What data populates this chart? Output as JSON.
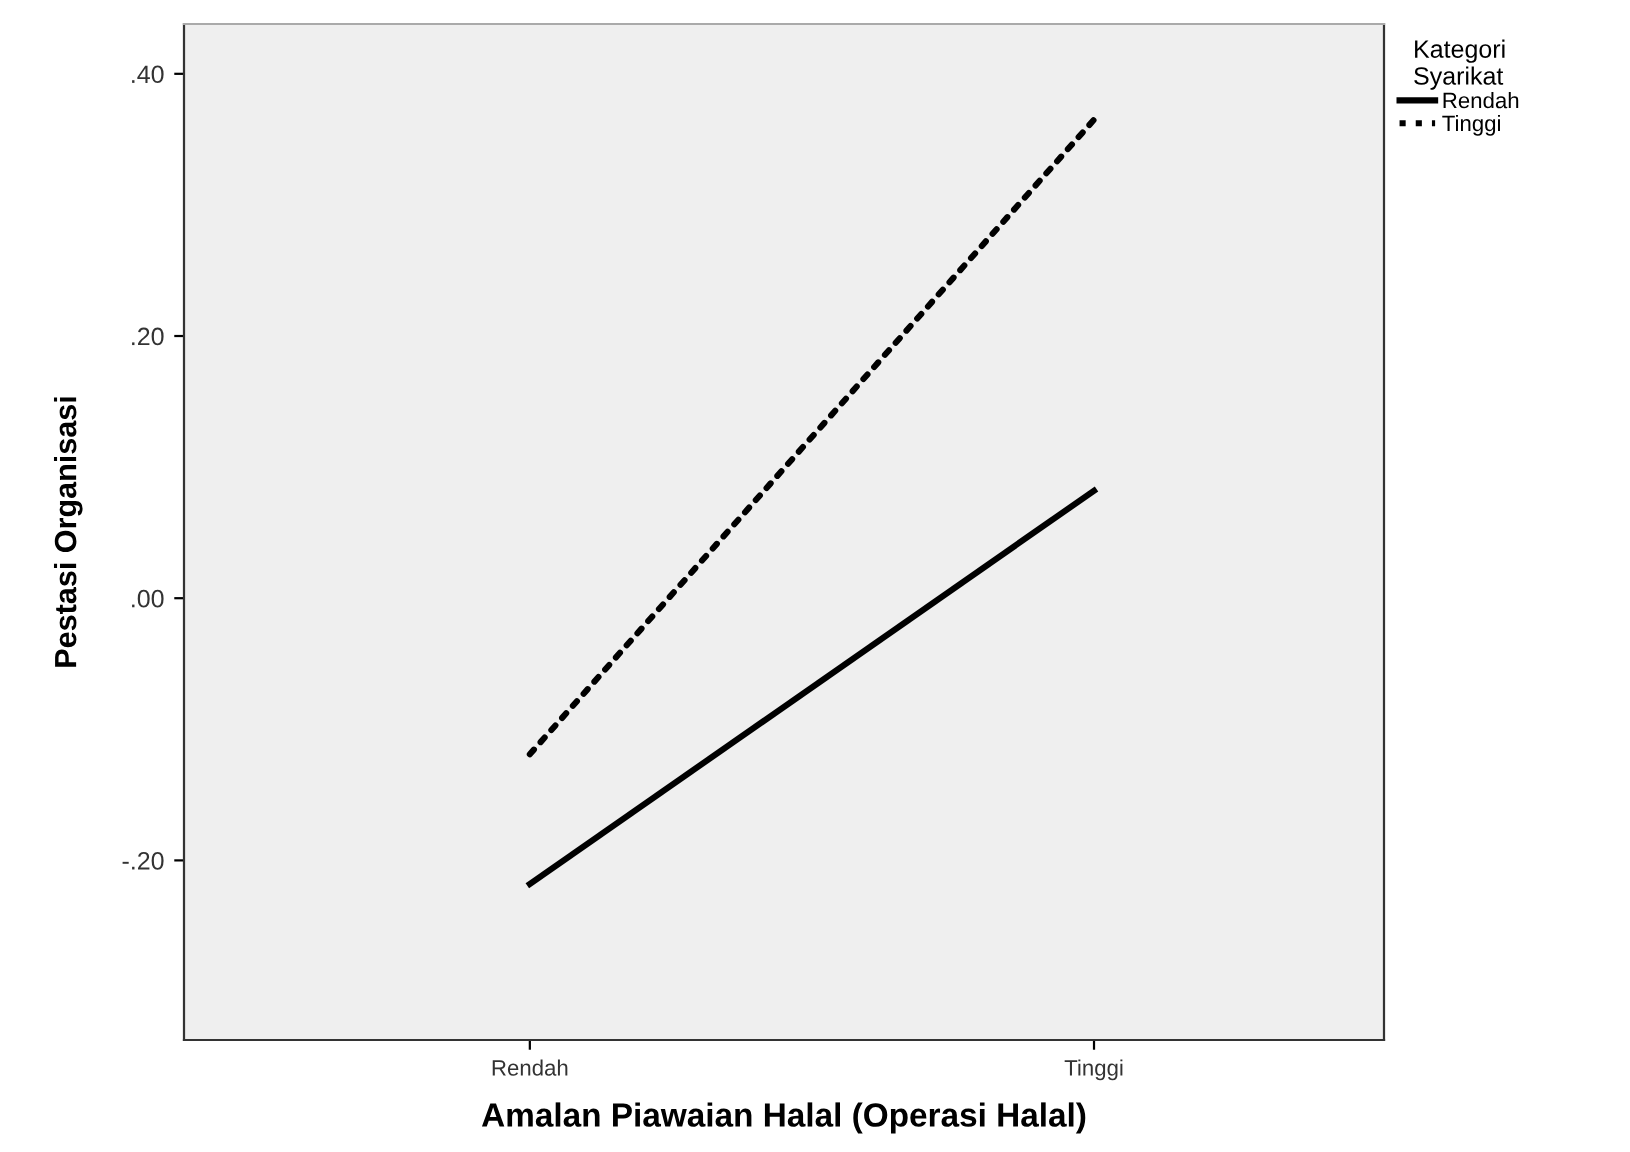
{
  "chart_data": {
    "type": "line",
    "xlabel": "Amalan Piawaian Halal (Operasi Halal)",
    "ylabel": "Pestasi Organisasi",
    "legend_title": "Kategori\nSyarikat",
    "categories": [
      "Rendah",
      "Tinggi"
    ],
    "series": [
      {
        "name": "Rendah",
        "color": "#000000",
        "line_style": "solid",
        "values": [
          -0.218,
          0.082
        ]
      },
      {
        "name": "Tinggi",
        "color": "#000000",
        "line_style": "dotted",
        "values": [
          -0.119,
          0.365
        ]
      }
    ],
    "ylim": [
      -0.337,
      0.438
    ],
    "yticks": [
      {
        "value": -0.2,
        "label": "-.20"
      },
      {
        "value": 0,
        "label": ".00"
      },
      {
        "value": 0.2,
        "label": ".20"
      },
      {
        "value": 0.4,
        "label": ".40"
      }
    ],
    "legend": "top right",
    "grid": false
  }
}
